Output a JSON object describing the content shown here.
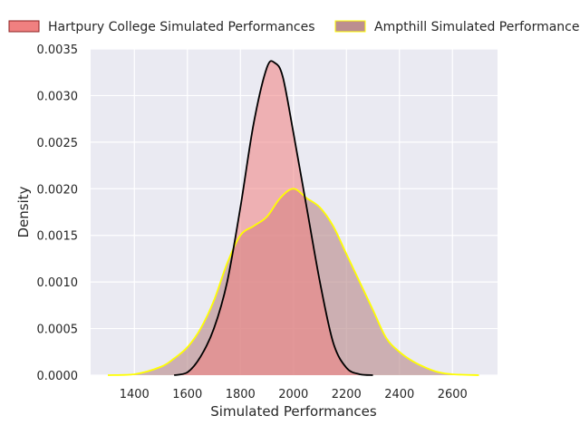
{
  "chart_data": {
    "type": "area",
    "title": "",
    "xlabel": "Simulated Performances",
    "ylabel": "Density",
    "xlim": [
      1235,
      2770
    ],
    "ylim": [
      0,
      0.0035
    ],
    "x_ticks": [
      1400,
      1600,
      1800,
      2000,
      2200,
      2400,
      2600
    ],
    "x_tick_labels": [
      "1400",
      "1600",
      "1800",
      "2000",
      "2200",
      "2400",
      "2600"
    ],
    "y_ticks": [
      0,
      0.0005,
      0.001,
      0.0015,
      0.002,
      0.0025,
      0.003,
      0.0035
    ],
    "y_tick_labels": [
      "0.0000",
      "0.0005",
      "0.0010",
      "0.0015",
      "0.0020",
      "0.0025",
      "0.0030",
      "0.0035"
    ],
    "grid": true,
    "legend_position": "top",
    "series": [
      {
        "name": "Hartpury College Simulated Performances",
        "fill": "#f08080",
        "line": "#000000",
        "points": [
          [
            1550,
            0
          ],
          [
            1600,
            3e-05
          ],
          [
            1650,
            0.0002
          ],
          [
            1700,
            0.0005
          ],
          [
            1750,
            0.001
          ],
          [
            1800,
            0.0018
          ],
          [
            1850,
            0.0027
          ],
          [
            1900,
            0.0033
          ],
          [
            1930,
            0.00335
          ],
          [
            1960,
            0.0032
          ],
          [
            2000,
            0.0026
          ],
          [
            2050,
            0.0018
          ],
          [
            2100,
            0.001
          ],
          [
            2150,
            0.00035
          ],
          [
            2200,
            8e-05
          ],
          [
            2250,
            1e-05
          ],
          [
            2300,
            0
          ]
        ]
      },
      {
        "name": "Ampthill Simulated Performances",
        "fill": "#bc8f8f",
        "line": "#ffff00",
        "points": [
          [
            1300,
            0
          ],
          [
            1400,
            1e-05
          ],
          [
            1500,
            9e-05
          ],
          [
            1550,
            0.00018
          ],
          [
            1600,
            0.0003
          ],
          [
            1650,
            0.0005
          ],
          [
            1700,
            0.0008
          ],
          [
            1750,
            0.0012
          ],
          [
            1800,
            0.0015
          ],
          [
            1850,
            0.0016
          ],
          [
            1900,
            0.0017
          ],
          [
            1950,
            0.0019
          ],
          [
            2000,
            0.002
          ],
          [
            2050,
            0.0019
          ],
          [
            2100,
            0.0018
          ],
          [
            2150,
            0.0016
          ],
          [
            2200,
            0.0013
          ],
          [
            2250,
            0.001
          ],
          [
            2300,
            0.0007
          ],
          [
            2350,
            0.0004
          ],
          [
            2400,
            0.00025
          ],
          [
            2450,
            0.00015
          ],
          [
            2500,
            8e-05
          ],
          [
            2550,
            3e-05
          ],
          [
            2600,
            1e-05
          ],
          [
            2700,
            0
          ]
        ]
      }
    ]
  }
}
